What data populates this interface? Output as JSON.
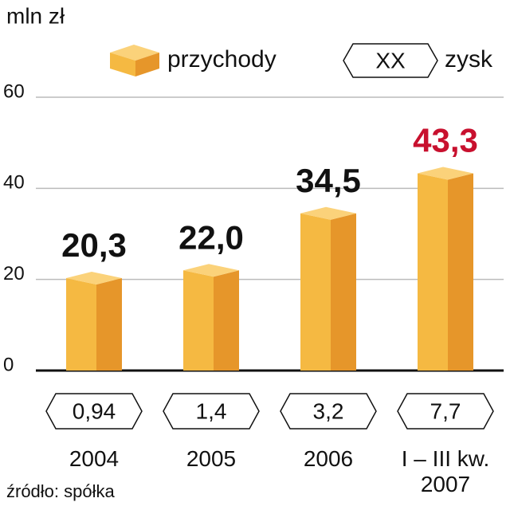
{
  "chart_data": {
    "type": "bar",
    "unit_label": "mln zł",
    "source": "źródło: spółka",
    "categories": [
      "2004",
      "2005",
      "2006",
      "I – III kw. 2007"
    ],
    "series": [
      {
        "name": "przychody",
        "color": "#f5b942",
        "values": [
          20.3,
          22.0,
          34.5,
          43.3
        ],
        "value_labels": [
          "20,3",
          "22,0",
          "34,5",
          "43,3"
        ],
        "label_colors": [
          "#111111",
          "#111111",
          "#111111",
          "#c8102e"
        ]
      },
      {
        "name": "zysk",
        "values": [
          0.94,
          1.4,
          3.2,
          7.7
        ],
        "value_labels": [
          "0,94",
          "1,4",
          "3,2",
          "7,7"
        ],
        "legend_sample": "XX"
      }
    ],
    "ylim": [
      0,
      60
    ],
    "yticks": [
      0,
      20,
      40,
      60
    ],
    "grid": true
  }
}
